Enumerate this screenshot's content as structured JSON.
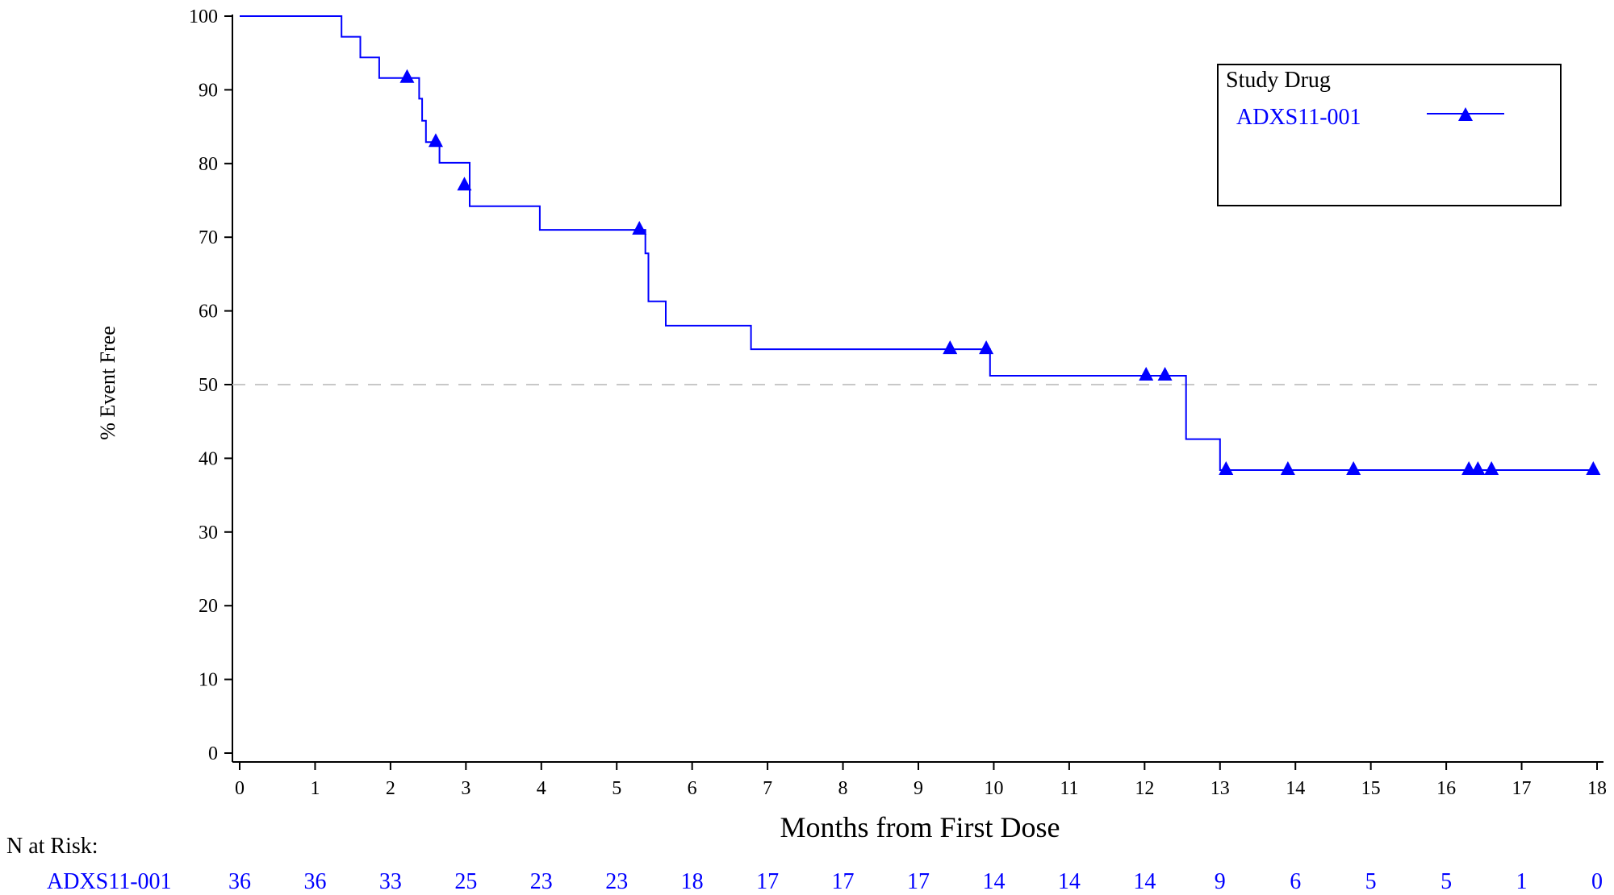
{
  "chart_data": {
    "type": "line",
    "subtype": "kaplan-meier-step",
    "xlabel": "Months from First Dose",
    "ylabel": "% Event Free",
    "xlim": [
      0,
      18
    ],
    "ylim": [
      0,
      100
    ],
    "x_ticks": [
      0,
      1,
      2,
      3,
      4,
      5,
      6,
      7,
      8,
      9,
      10,
      11,
      12,
      13,
      14,
      15,
      16,
      17,
      18
    ],
    "y_ticks": [
      0,
      10,
      20,
      30,
      40,
      50,
      60,
      70,
      80,
      90,
      100
    ],
    "x_tick_labels": [
      "0",
      "1",
      "2",
      "3",
      "4",
      "5",
      "6",
      "7",
      "8",
      "9",
      "10",
      "11",
      "12",
      "13",
      "14",
      "15",
      "16",
      "17",
      "18"
    ],
    "y_tick_labels": [
      "0",
      "10",
      "20",
      "30",
      "40",
      "50",
      "60",
      "70",
      "80",
      "90",
      "100"
    ],
    "reference_line": {
      "y": 50,
      "style": "dashed",
      "color": "#c8c8c8"
    },
    "grid": false,
    "legend": {
      "title": "Study Drug",
      "position": "top-right",
      "entries": [
        "ADXS11-001"
      ]
    },
    "series": [
      {
        "name": "ADXS11-001",
        "color": "#0000ff",
        "marker": "triangle",
        "steps": [
          [
            0,
            100
          ],
          [
            1.35,
            97.2
          ],
          [
            1.6,
            94.4
          ],
          [
            1.85,
            91.6
          ],
          [
            2.38,
            88.8
          ],
          [
            2.42,
            85.8
          ],
          [
            2.47,
            82.9
          ],
          [
            2.65,
            80.1
          ],
          [
            3.05,
            74.2
          ],
          [
            3.98,
            71.0
          ],
          [
            5.38,
            67.8
          ],
          [
            5.42,
            61.3
          ],
          [
            5.65,
            58.0
          ],
          [
            6.78,
            54.8
          ],
          [
            9.95,
            51.2
          ],
          [
            12.55,
            42.6
          ],
          [
            13.0,
            38.4
          ],
          [
            17.95,
            38.4
          ]
        ],
        "censored": [
          [
            2.22,
            91.6
          ],
          [
            2.6,
            82.9
          ],
          [
            2.98,
            77.0
          ],
          [
            5.3,
            71.0
          ],
          [
            9.42,
            54.8
          ],
          [
            9.9,
            54.8
          ],
          [
            12.02,
            51.2
          ],
          [
            12.27,
            51.2
          ],
          [
            13.08,
            38.4
          ],
          [
            13.9,
            38.4
          ],
          [
            14.77,
            38.4
          ],
          [
            16.3,
            38.4
          ],
          [
            16.42,
            38.4
          ],
          [
            16.6,
            38.4
          ],
          [
            17.95,
            38.4
          ]
        ]
      }
    ],
    "risk_table": {
      "title": "N at Risk:",
      "rows": [
        {
          "name": "ADXS11-001",
          "color": "#0000ff",
          "values": [
            "36",
            "36",
            "33",
            "25",
            "23",
            "23",
            "18",
            "17",
            "17",
            "17",
            "14",
            "14",
            "14",
            "9",
            "6",
            "5",
            "5",
            "1",
            "0"
          ]
        }
      ]
    }
  }
}
